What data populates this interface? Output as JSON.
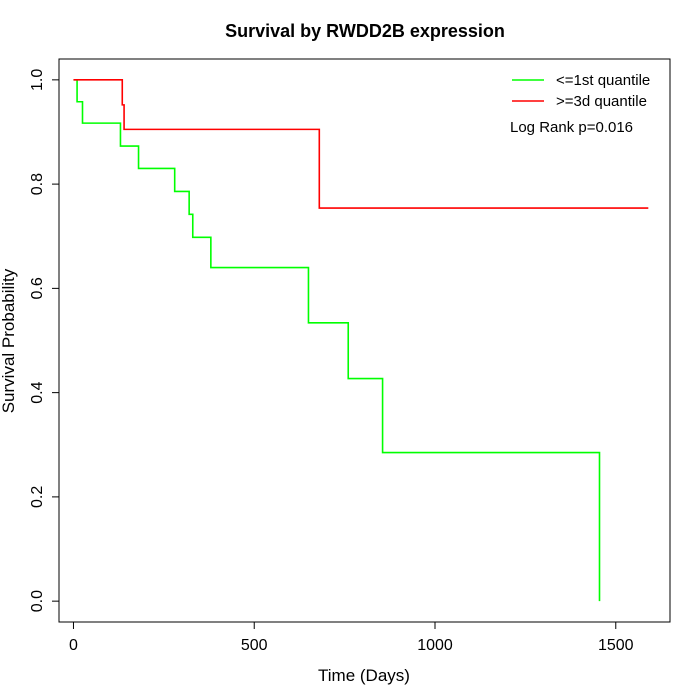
{
  "chart_data": {
    "type": "line",
    "title": "Survival by RWDD2B expression",
    "xlabel": "Time (Days)",
    "ylabel": "Survival Probability",
    "xlim": [
      -40,
      1650
    ],
    "ylim": [
      -0.04,
      1.04
    ],
    "x_ticks": [
      0,
      500,
      1000,
      1500
    ],
    "x_tick_labels": [
      "0",
      "500",
      "1000",
      "1500"
    ],
    "y_ticks": [
      0.0,
      0.2,
      0.4,
      0.6,
      0.8,
      1.0
    ],
    "y_tick_labels": [
      "0.0",
      "0.2",
      "0.4",
      "0.6",
      "0.8",
      "1.0"
    ],
    "legend_position": "top-right",
    "annotation": "Log Rank p=0.016",
    "grid": false,
    "series": [
      {
        "name": "<=1st quantile",
        "color": "#00ff00",
        "steps": [
          [
            0,
            1.0
          ],
          [
            10,
            0.958
          ],
          [
            25,
            0.917
          ],
          [
            130,
            0.873
          ],
          [
            180,
            0.83
          ],
          [
            280,
            0.786
          ],
          [
            320,
            0.742
          ],
          [
            330,
            0.698
          ],
          [
            380,
            0.64
          ],
          [
            650,
            0.534
          ],
          [
            760,
            0.427
          ],
          [
            855,
            0.285
          ],
          [
            1455,
            0.0
          ]
        ]
      },
      {
        "name": ">=3d quantile",
        "color": "#ff0000",
        "steps": [
          [
            0,
            1.0
          ],
          [
            135,
            0.952
          ],
          [
            140,
            0.905
          ],
          [
            680,
            0.754
          ]
        ],
        "end_x": 1590
      }
    ]
  }
}
